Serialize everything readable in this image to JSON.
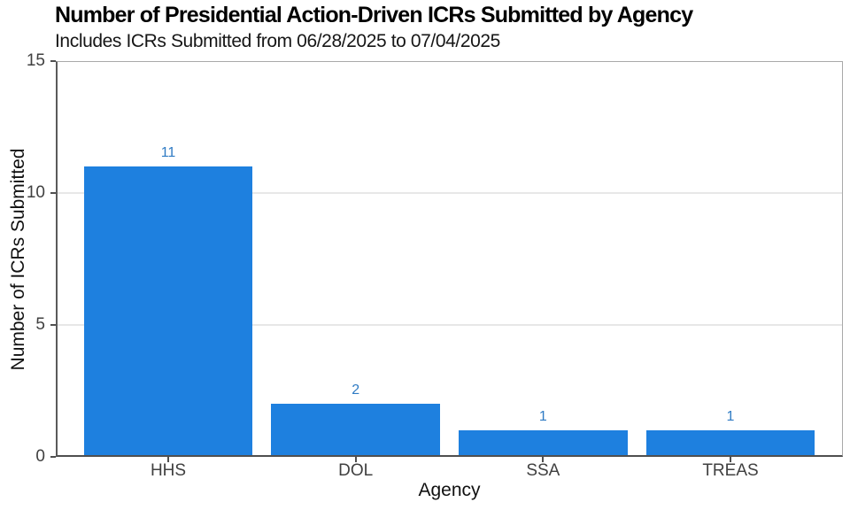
{
  "chart_data": {
    "type": "bar",
    "title": "Number of Presidential Action-Driven ICRs Submitted by Agency",
    "subtitle": "Includes ICRs Submitted from 06/28/2025 to 07/04/2025",
    "xlabel": "Agency",
    "ylabel": "Number of ICRs Submitted",
    "categories": [
      "HHS",
      "DOL",
      "SSA",
      "TREAS"
    ],
    "values": [
      11,
      2,
      1,
      1
    ],
    "ylim": [
      0,
      15
    ],
    "yticks": [
      0,
      5,
      10,
      15
    ],
    "gridline_values": [
      5,
      10
    ],
    "grid": "horizontal major gridlines only",
    "legend": "none",
    "colors": {
      "bar_fill": "#1e80df",
      "value_label": "#2f7bc4",
      "grid_line": "#e7e7e7",
      "panel_border": "#a9a9a9",
      "axis_line": "#4f4f4f",
      "tick_label": "#404040",
      "axis_title": "#111111",
      "title_text": "#000000",
      "background": "#ffffff"
    }
  }
}
